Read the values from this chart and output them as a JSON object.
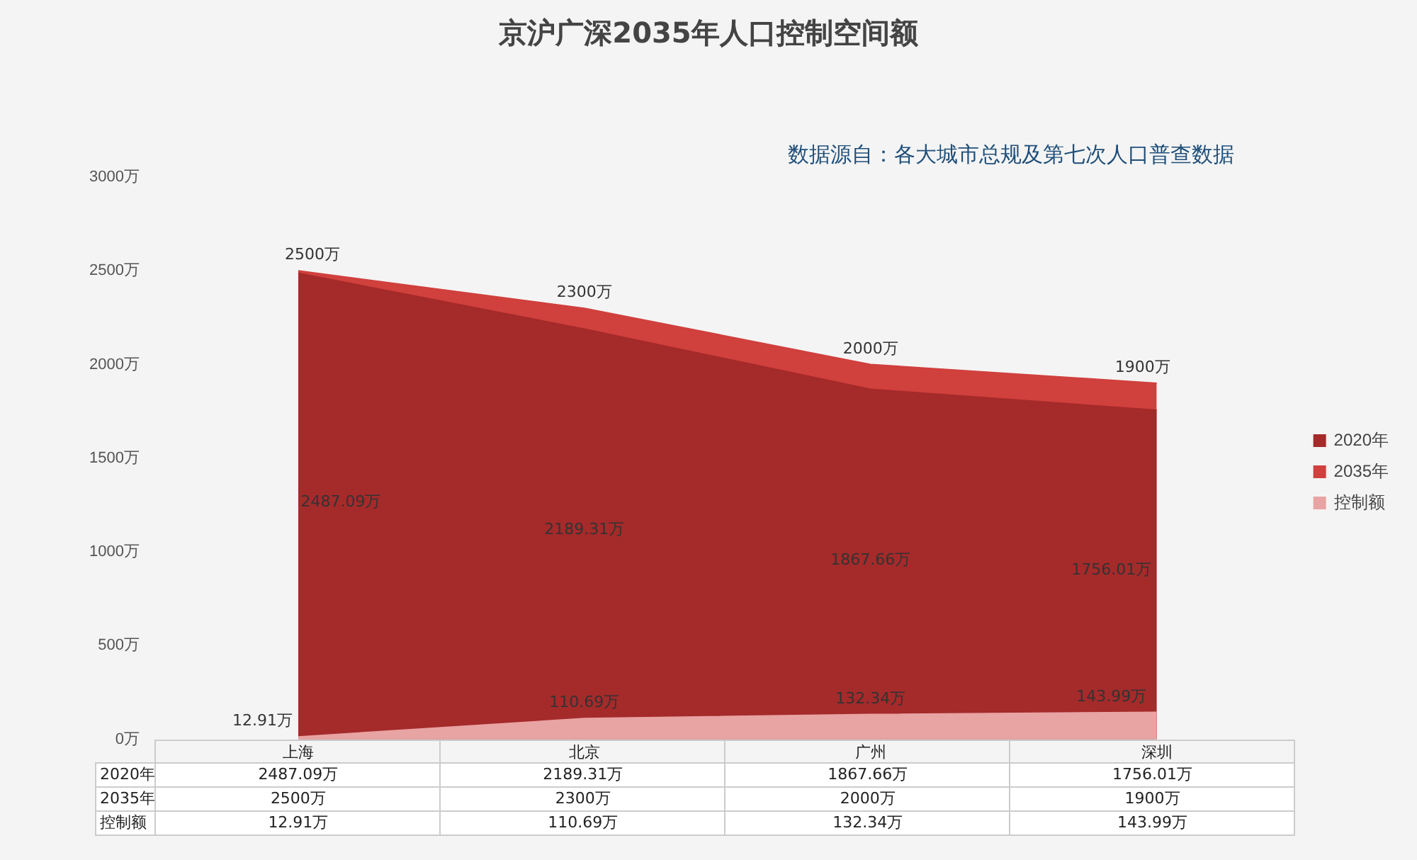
{
  "chart_data": {
    "type": "area",
    "title": "京沪广深2035年人口控制空间额",
    "annotations": [
      "数据源自：各大城市总规及第七次人口普查数据"
    ],
    "categories": [
      "上海",
      "北京",
      "广州",
      "深圳"
    ],
    "series": [
      {
        "name": "2020年",
        "color": "#a52a2a",
        "values": [
          2487.09,
          2189.31,
          1867.66,
          1756.01
        ],
        "value_labels": [
          "2487.09万",
          "2189.31万",
          "1867.66万",
          "1756.01万"
        ]
      },
      {
        "name": "2035年",
        "color": "#d0403d",
        "values": [
          2500,
          2300,
          2000,
          1900
        ],
        "value_labels": [
          "2500万",
          "2300万",
          "2000万",
          "1900万"
        ]
      },
      {
        "name": "控制额",
        "color": "#e8a3a3",
        "values": [
          12.91,
          110.69,
          132.34,
          143.99
        ],
        "value_labels": [
          "12.91万",
          "110.69万",
          "132.34万",
          "143.99万"
        ]
      }
    ],
    "ylim": [
      0,
      3000
    ],
    "yticks": [
      {
        "value": 0,
        "label": "0万"
      },
      {
        "value": 500,
        "label": "500万"
      },
      {
        "value": 1000,
        "label": "1000万"
      },
      {
        "value": 1500,
        "label": "1500万"
      },
      {
        "value": 2000,
        "label": "2000万"
      },
      {
        "value": 2500,
        "label": "2500万"
      },
      {
        "value": 3000,
        "label": "3000万"
      }
    ],
    "grid": false,
    "legend": "right"
  }
}
